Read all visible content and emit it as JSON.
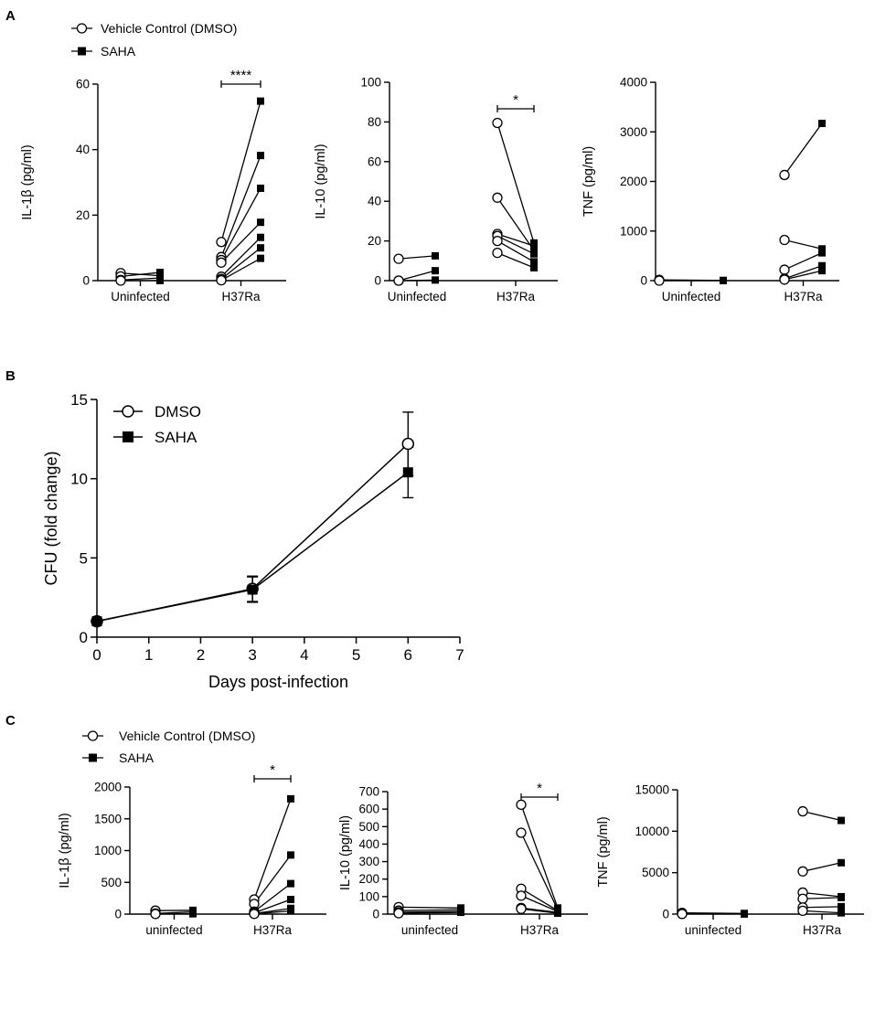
{
  "panels": [
    "A",
    "B",
    "C"
  ],
  "legend_a": {
    "control": "Vehicle Control (DMSO)",
    "treatment": "SAHA"
  },
  "legend_b": {
    "control": "DMSO",
    "treatment": "SAHA"
  },
  "legend_c": {
    "control": "Vehicle Control (DMSO)",
    "treatment": "SAHA"
  },
  "chart_data": [
    {
      "id": "a1",
      "type": "scatter",
      "panel": "A",
      "ylabel": "IL-1β (pg/ml)",
      "ylim": [
        0,
        60
      ],
      "yticks": [
        0,
        20,
        40,
        60
      ],
      "tick_labels": [
        "0",
        "20",
        "40",
        "60"
      ],
      "groups": [
        "Uninfected",
        "H37Ra"
      ],
      "series_names": [
        "Vehicle Control (DMSO)",
        "SAHA"
      ],
      "pairs": [
        [
          [
            2.3,
            1.5
          ],
          [
            1.3,
            2.5
          ],
          [
            0.2,
            0.8
          ],
          [
            0,
            0
          ]
        ],
        [
          [
            11.8,
            54.8
          ],
          [
            7.2,
            38.2
          ],
          [
            6.3,
            28.2
          ],
          [
            5.5,
            17.8
          ],
          [
            1.2,
            13.2
          ],
          [
            0.5,
            10
          ],
          [
            0.1,
            6.8
          ]
        ]
      ],
      "significance": {
        "group": 1,
        "label": "****"
      }
    },
    {
      "id": "a2",
      "type": "scatter",
      "panel": "A",
      "ylabel": "IL-10 (pg/ml)",
      "ylim": [
        0,
        100
      ],
      "yticks": [
        0,
        20,
        40,
        60,
        80,
        100
      ],
      "tick_labels": [
        "0",
        "20",
        "40",
        "60",
        "80",
        "100"
      ],
      "groups": [
        "Uninfected",
        "H37Ra"
      ],
      "series_names": [
        "Vehicle Control (DMSO)",
        "SAHA"
      ],
      "pairs": [
        [
          [
            11,
            12.5
          ],
          [
            0,
            5
          ],
          [
            0,
            0.3
          ]
        ],
        [
          [
            79.5,
            19
          ],
          [
            41.8,
            15.2
          ],
          [
            23.5,
            17.5
          ],
          [
            22.5,
            13.5
          ],
          [
            20,
            9.5
          ],
          [
            14,
            6.5
          ]
        ]
      ],
      "significance": {
        "group": 1,
        "label": "*"
      }
    },
    {
      "id": "a3",
      "type": "scatter",
      "panel": "A",
      "ylabel": "TNF (pg/ml)",
      "ylim": [
        0,
        4000
      ],
      "yticks": [
        0,
        1000,
        2000,
        3000,
        4000
      ],
      "tick_labels": [
        "0",
        "1000",
        "2000",
        "3000",
        "4000"
      ],
      "groups": [
        "Uninfected",
        "H37Ra"
      ],
      "series_names": [
        "Vehicle Control (DMSO)",
        "SAHA"
      ],
      "pairs": [
        [
          [
            15,
            5
          ],
          [
            0,
            0
          ]
        ],
        [
          [
            2130,
            3170
          ],
          [
            820,
            640
          ],
          [
            220,
            560
          ],
          [
            40,
            300
          ],
          [
            20,
            200
          ]
        ]
      ],
      "significance": null
    },
    {
      "id": "b",
      "type": "line",
      "panel": "B",
      "xlabel": "Days post-infection",
      "ylabel": "CFU (fold change)",
      "xlim": [
        0,
        7
      ],
      "ylim": [
        0,
        15
      ],
      "xticks": [
        0,
        1,
        2,
        3,
        4,
        5,
        6,
        7
      ],
      "yticks": [
        0,
        5,
        10,
        15
      ],
      "xtick_labels": [
        "0",
        "1",
        "2",
        "3",
        "4",
        "5",
        "6",
        "7"
      ],
      "ytick_labels": [
        "0",
        "5",
        "10",
        "15"
      ],
      "series": [
        {
          "name": "DMSO",
          "x": [
            0,
            3,
            6
          ],
          "y": [
            1,
            3.05,
            12.2
          ],
          "err": [
            0,
            0.8,
            2.0
          ]
        },
        {
          "name": "SAHA",
          "x": [
            0,
            3,
            6
          ],
          "y": [
            1,
            3.0,
            10.4
          ],
          "err": [
            0,
            0.8,
            1.6
          ]
        }
      ]
    },
    {
      "id": "c1",
      "type": "scatter",
      "panel": "C",
      "ylabel": "IL-1β (pg/ml)",
      "ylim": [
        0,
        2000
      ],
      "yticks": [
        0,
        500,
        1000,
        1500,
        2000
      ],
      "tick_labels": [
        "0",
        "500",
        "1000",
        "1500",
        "2000"
      ],
      "groups": [
        "uninfected",
        "H37Ra"
      ],
      "series_names": [
        "Vehicle Control (DMSO)",
        "SAHA"
      ],
      "pairs": [
        [
          [
            55,
            60
          ],
          [
            10,
            35
          ],
          [
            2,
            5
          ]
        ],
        [
          [
            230,
            1815
          ],
          [
            160,
            930
          ],
          [
            40,
            480
          ],
          [
            20,
            230
          ],
          [
            8,
            90
          ],
          [
            3,
            50
          ]
        ]
      ],
      "significance": {
        "group": 1,
        "label": "*"
      }
    },
    {
      "id": "c2",
      "type": "scatter",
      "panel": "C",
      "ylabel": "IL-10 (pg/ml)",
      "ylim": [
        0,
        700
      ],
      "yticks": [
        0,
        100,
        200,
        300,
        400,
        500,
        600,
        700
      ],
      "tick_labels": [
        "0",
        "100",
        "200",
        "300",
        "400",
        "500",
        "600",
        "700"
      ],
      "groups": [
        "uninfected",
        "H37Ra"
      ],
      "series_names": [
        "Vehicle Control (DMSO)",
        "SAHA"
      ],
      "pairs": [
        [
          [
            40,
            35
          ],
          [
            20,
            25
          ],
          [
            10,
            15
          ],
          [
            5,
            10
          ]
        ],
        [
          [
            625,
            35
          ],
          [
            465,
            25
          ],
          [
            145,
            20
          ],
          [
            105,
            15
          ],
          [
            35,
            10
          ],
          [
            30,
            5
          ]
        ]
      ],
      "significance": {
        "group": 1,
        "label": "*"
      }
    },
    {
      "id": "c3",
      "type": "scatter",
      "panel": "C",
      "ylabel": "TNF (pg/ml)",
      "ylim": [
        0,
        15000
      ],
      "yticks": [
        0,
        5000,
        10000,
        15000
      ],
      "tick_labels": [
        "0",
        "5000",
        "10000",
        "15000"
      ],
      "groups": [
        "uninfected",
        "H37Ra"
      ],
      "series_names": [
        "Vehicle Control (DMSO)",
        "SAHA"
      ],
      "pairs": [
        [
          [
            150,
            80
          ],
          [
            60,
            40
          ],
          [
            20,
            10
          ]
        ],
        [
          [
            12400,
            11300
          ],
          [
            5150,
            6200
          ],
          [
            2600,
            2100
          ],
          [
            1850,
            2000
          ],
          [
            800,
            900
          ],
          [
            400,
            150
          ]
        ]
      ],
      "significance": null
    }
  ]
}
